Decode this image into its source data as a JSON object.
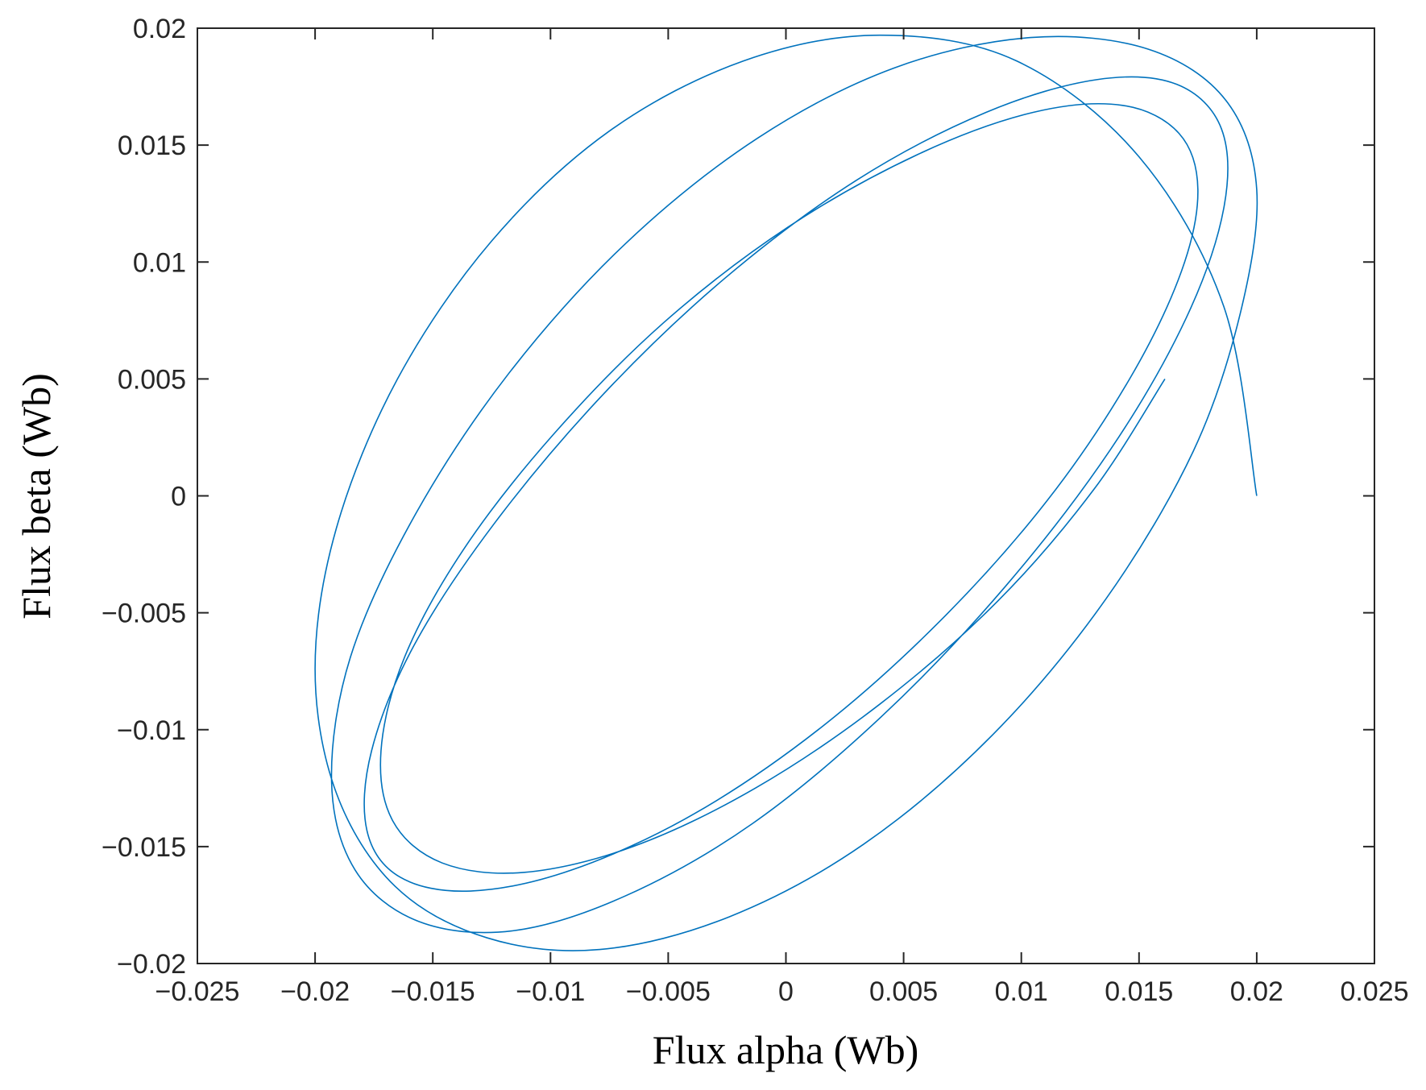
{
  "chart_data": {
    "type": "line",
    "title": "",
    "xlabel": "Flux alpha (Wb)",
    "ylabel": "Flux beta (Wb)",
    "xlim": [
      -0.025,
      0.025
    ],
    "ylim": [
      -0.02,
      0.02
    ],
    "xticks": [
      -0.025,
      -0.02,
      -0.015,
      -0.01,
      -0.005,
      0,
      0.005,
      0.01,
      0.015,
      0.02,
      0.025
    ],
    "xtick_labels": [
      "−0.025",
      "−0.02",
      "−0.015",
      "−0.01",
      "−0.005",
      "0",
      "0.005",
      "0.01",
      "0.015",
      "0.02",
      "0.025"
    ],
    "yticks": [
      -0.02,
      -0.015,
      -0.01,
      -0.005,
      0,
      0.005,
      0.01,
      0.015,
      0.02
    ],
    "ytick_labels": [
      "−0.02",
      "−0.015",
      "−0.01",
      "−0.005",
      "0",
      "0.005",
      "0.01",
      "0.015",
      "0.02"
    ],
    "grid": false,
    "legend": "none",
    "series_color": "#0072BD",
    "series": [
      {
        "x": [
          0.02,
          0.0186,
          0.015,
          0.0098,
          0.004,
          -0.0018,
          -0.0075,
          -0.0125,
          -0.0165,
          -0.0191,
          -0.02,
          -0.0191,
          -0.0166,
          -0.0127,
          -0.0079,
          -0.0024,
          0.0033,
          0.0088,
          0.0136,
          0.0173,
          0.0193,
          0.02,
          0.0187,
          0.0154,
          0.0104,
          0.0046,
          -0.0012,
          -0.0068,
          -0.0118,
          -0.0158,
          -0.0185,
          -0.0193,
          -0.0183,
          -0.0156,
          -0.0116,
          -0.0068,
          -0.0014,
          0.0041,
          0.0093,
          0.0138,
          0.017,
          0.0186,
          0.0185,
          0.0166,
          0.0132,
          0.0085,
          0.003,
          -0.0026,
          -0.0078,
          -0.0124,
          -0.0158,
          -0.0176,
          -0.0178,
          -0.0164,
          -0.0134,
          -0.0091,
          -0.0039,
          0.0015,
          0.0066,
          0.0111,
          0.0146,
          0.0168,
          0.0175,
          0.0167,
          0.0143,
          0.0105,
          0.0056,
          0.0001,
          -0.0052,
          -0.0099,
          -0.0137,
          -0.0162,
          -0.0172,
          -0.0167,
          -0.0146,
          -0.0111,
          -0.0065,
          -0.0013,
          0.004,
          0.009,
          0.0131,
          0.0161
        ],
        "y": [
          0.0,
          0.0081,
          0.0145,
          0.0186,
          0.0197,
          0.0186,
          0.0156,
          0.0109,
          0.005,
          -0.0014,
          -0.0074,
          -0.0127,
          -0.0167,
          -0.0189,
          -0.0194,
          -0.018,
          -0.0149,
          -0.0102,
          -0.0044,
          0.0019,
          0.0078,
          0.0131,
          0.0169,
          0.0191,
          0.0196,
          0.0183,
          0.0153,
          0.0108,
          0.0052,
          -0.0009,
          -0.0069,
          -0.0122,
          -0.016,
          -0.0182,
          -0.0186,
          -0.0171,
          -0.014,
          -0.0094,
          -0.0039,
          0.002,
          0.0076,
          0.0123,
          0.0157,
          0.0176,
          0.0178,
          0.0164,
          0.0135,
          0.0093,
          0.0043,
          -0.0012,
          -0.0064,
          -0.0109,
          -0.0143,
          -0.0163,
          -0.0169,
          -0.016,
          -0.0136,
          -0.0099,
          -0.0053,
          -0.0002,
          0.005,
          0.0096,
          0.0131,
          0.0155,
          0.0167,
          0.0164,
          0.0146,
          0.0115,
          0.0074,
          0.0026,
          -0.0023,
          -0.0069,
          -0.0109,
          -0.0139,
          -0.0157,
          -0.0161,
          -0.015,
          -0.0125,
          -0.0089,
          -0.0045,
          0.0003,
          0.005
        ]
      }
    ]
  }
}
